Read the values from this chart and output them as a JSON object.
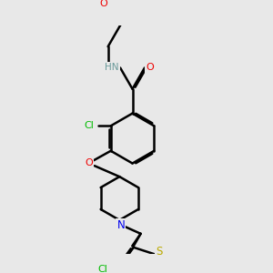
{
  "bg_color": "#e8e8e8",
  "atom_colors": {
    "N": "#0000ee",
    "O": "#ee0000",
    "S": "#bbaa00",
    "Cl": "#00bb00",
    "H": "#6a9a9a"
  },
  "bond_color": "#000000",
  "bond_width": 1.8,
  "dbo": 0.055,
  "figsize": [
    3.0,
    3.0
  ],
  "dpi": 100
}
